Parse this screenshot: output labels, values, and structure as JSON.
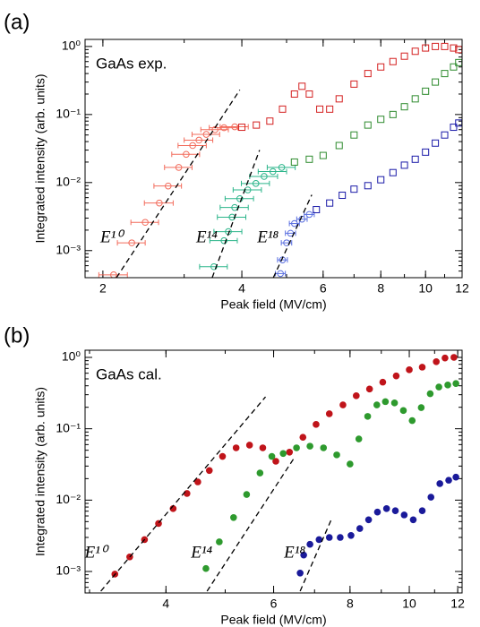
{
  "chart_data": [
    {
      "type": "scatter",
      "panel_label": "(a)",
      "title": "GaAs exp.",
      "x_label": "Peak field (MV/cm)",
      "y_label": "Integrated intensity (arb. units)",
      "xscale": "log",
      "yscale": "log",
      "minor_ticks": true,
      "xlim": [
        1.83,
        12
      ],
      "xticks": [
        2,
        4,
        6,
        8,
        10,
        12
      ],
      "ylim": [
        0.0004,
        1.27
      ],
      "yticks": [
        {
          "value": 1,
          "label": "10⁰"
        },
        {
          "value": 0.1,
          "label": "10⁻¹"
        },
        {
          "value": 0.01,
          "label": "10⁻²"
        },
        {
          "value": 0.001,
          "label": "10⁻³"
        }
      ],
      "series": [
        {
          "color": "#f26b5b",
          "marker": "circle-open",
          "x": [
            2.11,
            2.31,
            2.47,
            2.65,
            2.77,
            2.92,
            3.03,
            3.13,
            3.23,
            3.35,
            3.5,
            3.66,
            3.86
          ],
          "values": [
            0.00044,
            0.0013,
            0.0026,
            0.005,
            0.0089,
            0.0167,
            0.026,
            0.035,
            0.042,
            0.051,
            0.06,
            0.064,
            0.066
          ],
          "xerr": [
            0.15,
            0.16,
            0.17,
            0.19,
            0.19,
            0.2,
            0.21,
            0.22,
            0.23,
            0.23,
            0.24,
            0.26,
            0.27
          ]
        },
        {
          "color": "#d42020",
          "marker": "square-open",
          "x": [
            4,
            4.3,
            4.6,
            4.9,
            5.2,
            5.4,
            5.6,
            5.9,
            6.2,
            6.5,
            7,
            7.5,
            8,
            8.5,
            9,
            9.5,
            10,
            10.5,
            11,
            11.5,
            11.8
          ],
          "values": [
            0.065,
            0.07,
            0.08,
            0.12,
            0.2,
            0.26,
            0.2,
            0.12,
            0.12,
            0.17,
            0.28,
            0.4,
            0.5,
            0.6,
            0.72,
            0.85,
            0.95,
            1,
            1,
            0.95,
            0.9
          ]
        },
        {
          "color": "#2bb58a",
          "marker": "circle-open",
          "x": [
            3.48,
            3.66,
            3.74,
            3.81,
            3.86,
            3.96,
            4.12,
            4.29,
            4.47,
            4.67,
            4.88
          ],
          "values": [
            0.00058,
            0.0014,
            0.0019,
            0.0031,
            0.0043,
            0.0058,
            0.0078,
            0.0097,
            0.0123,
            0.0145,
            0.0167
          ],
          "xerr": [
            0.24,
            0.25,
            0.26,
            0.27,
            0.27,
            0.28,
            0.29,
            0.3,
            0.31,
            0.33,
            0.34
          ]
        },
        {
          "color": "#2e8b2e",
          "marker": "square-open",
          "x": [
            5.2,
            5.6,
            6,
            6.5,
            7,
            7.5,
            8,
            8.5,
            9,
            9.5,
            10,
            10.5,
            11,
            11.5,
            11.8
          ],
          "values": [
            0.02,
            0.022,
            0.025,
            0.035,
            0.05,
            0.07,
            0.085,
            0.1,
            0.13,
            0.17,
            0.22,
            0.3,
            0.4,
            0.5,
            0.58
          ]
        },
        {
          "color": "#5a6fe0",
          "marker": "circle-open",
          "x": [
            4.85,
            4.9,
            5,
            5.1,
            5.2,
            5.4,
            5.6
          ],
          "values": [
            0.00046,
            0.00073,
            0.0013,
            0.0018,
            0.0025,
            0.0029,
            0.0034
          ],
          "xerr": [
            0.12,
            0.12,
            0.13,
            0.13,
            0.13,
            0.14,
            0.14
          ]
        },
        {
          "color": "#1a1aa8",
          "marker": "square-open",
          "x": [
            5.8,
            6.2,
            6.6,
            7,
            7.5,
            8,
            8.5,
            9,
            9.5,
            10,
            10.5,
            11,
            11.5,
            11.8
          ],
          "values": [
            0.004,
            0.005,
            0.0065,
            0.008,
            0.009,
            0.011,
            0.014,
            0.018,
            0.022,
            0.028,
            0.038,
            0.05,
            0.065,
            0.075
          ]
        },
        {
          "name": "E¹⁰",
          "color": "#000000",
          "style": "dashed",
          "x": [
            2.14,
            3.96
          ],
          "values": [
            0.0004,
            0.23
          ]
        },
        {
          "name": "E¹⁴",
          "color": "#000000",
          "style": "dashed",
          "x": [
            3.45,
            4.37
          ],
          "values": [
            0.0004,
            0.03
          ]
        },
        {
          "name": "E¹⁸",
          "color": "#000000",
          "style": "dashed",
          "x": [
            4.68,
            5.67
          ],
          "values": [
            0.0004,
            0.0066
          ]
        }
      ]
    },
    {
      "type": "scatter",
      "panel_label": "(b)",
      "title": "GaAs cal.",
      "x_label": "Peak field (MV/cm)",
      "y_label": "Integrated intensity (arb. units)",
      "xscale": "log",
      "yscale": "log",
      "minor_ticks": true,
      "xlim": [
        2.95,
        12.2
      ],
      "xticks": [
        4,
        6,
        8,
        10,
        12
      ],
      "ylim": [
        0.0005,
        1.26
      ],
      "yticks": [
        {
          "value": 1,
          "label": "10⁰"
        },
        {
          "value": 0.1,
          "label": "10⁻¹"
        },
        {
          "value": 0.01,
          "label": "10⁻²"
        },
        {
          "value": 0.001,
          "label": "10⁻³"
        }
      ],
      "series": [
        {
          "color": "#c0141a",
          "marker": "circle",
          "x": [
            3.3,
            3.49,
            3.69,
            3.89,
            4.11,
            4.33,
            4.51,
            4.71,
            4.95,
            5.21,
            5.48,
            5.76,
            6.05,
            6.37,
            6.7,
            7.04,
            7.4,
            7.79,
            8.19,
            8.61,
            9.05,
            9.52,
            10,
            10.5,
            11.07,
            11.44,
            11.83
          ],
          "values": [
            0.00092,
            0.0016,
            0.0028,
            0.0047,
            0.0076,
            0.0124,
            0.018,
            0.026,
            0.041,
            0.054,
            0.059,
            0.054,
            0.035,
            0.047,
            0.076,
            0.115,
            0.162,
            0.216,
            0.29,
            0.36,
            0.45,
            0.55,
            0.67,
            0.73,
            0.87,
            0.98,
            1
          ]
        },
        {
          "color": "#2e9a2e",
          "marker": "circle",
          "x": [
            4.65,
            4.89,
            5.16,
            5.42,
            5.7,
            5.96,
            6.22,
            6.54,
            6.88,
            7.24,
            7.61,
            8,
            8.27,
            8.55,
            8.85,
            9.14,
            9.46,
            9.78,
            10.11,
            10.46,
            10.82,
            11.18,
            11.56,
            11.92
          ],
          "values": [
            0.0011,
            0.0026,
            0.0057,
            0.012,
            0.024,
            0.041,
            0.045,
            0.054,
            0.057,
            0.054,
            0.043,
            0.032,
            0.072,
            0.149,
            0.216,
            0.24,
            0.23,
            0.18,
            0.13,
            0.198,
            0.31,
            0.385,
            0.41,
            0.43
          ]
        },
        {
          "color": "#1a1a9a",
          "marker": "circle",
          "x": [
            6.63,
            6.72,
            6.88,
            7.12,
            7.4,
            7.71,
            8.03,
            8.3,
            8.58,
            8.87,
            9.18,
            9.49,
            9.81,
            10.15,
            10.5,
            10.85,
            11.22,
            11.6,
            11.92
          ],
          "values": [
            0.00095,
            0.0017,
            0.0024,
            0.0028,
            0.003,
            0.003,
            0.0032,
            0.004,
            0.0053,
            0.0068,
            0.0076,
            0.0071,
            0.0062,
            0.0053,
            0.0071,
            0.011,
            0.017,
            0.019,
            0.021
          ]
        },
        {
          "name": "E¹⁰",
          "color": "#000000",
          "style": "dashed",
          "x": [
            3.13,
            5.82
          ],
          "values": [
            0.00053,
            0.28
          ]
        },
        {
          "name": "E¹⁴",
          "color": "#000000",
          "style": "dashed",
          "x": [
            4.67,
            6.47
          ],
          "values": [
            0.00053,
            0.038
          ]
        },
        {
          "name": "E¹⁸",
          "color": "#000000",
          "style": "dashed",
          "x": [
            6.63,
            7.46
          ],
          "values": [
            0.00053,
            0.0054
          ]
        }
      ]
    }
  ]
}
